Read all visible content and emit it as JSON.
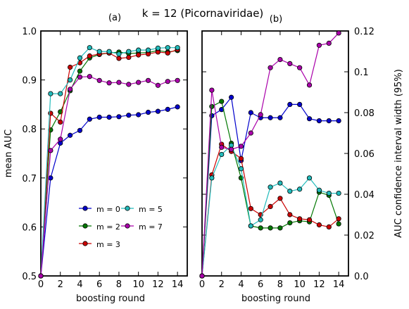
{
  "title": "k = 12 (Picornaviridae)",
  "chart_data": [
    {
      "panel_label": "(a)",
      "type": "line",
      "xlabel": "boosting round",
      "ylabel": "mean AUC",
      "xlim": [
        0,
        15
      ],
      "ylim": [
        0.5,
        1.0
      ],
      "xticks": [
        "0",
        "2",
        "4",
        "6",
        "8",
        "10",
        "12",
        "14"
      ],
      "yticks": [
        "0.5",
        "0.6",
        "0.7",
        "0.8",
        "0.9",
        "1.0"
      ],
      "x": [
        0,
        1,
        2,
        3,
        4,
        5,
        6,
        7,
        8,
        9,
        10,
        11,
        12,
        13,
        14
      ],
      "legend": {
        "placement": "lower-center"
      },
      "series": [
        {
          "name": "m = 0",
          "color": "#0000cc",
          "values": [
            0.5,
            0.7,
            0.771,
            0.787,
            0.797,
            0.82,
            0.824,
            0.824,
            0.825,
            0.828,
            0.829,
            0.834,
            0.836,
            0.84,
            0.845
          ]
        },
        {
          "name": "m = 2",
          "color": "#007700",
          "values": [
            0.5,
            0.798,
            0.835,
            0.878,
            0.918,
            0.945,
            0.952,
            0.955,
            0.957,
            0.954,
            0.955,
            0.956,
            0.96,
            0.957,
            0.96
          ]
        },
        {
          "name": "m = 3",
          "color": "#cc0000",
          "values": [
            0.5,
            0.832,
            0.814,
            0.926,
            0.935,
            0.949,
            0.953,
            0.955,
            0.944,
            0.946,
            0.951,
            0.953,
            0.957,
            0.955,
            0.962
          ]
        },
        {
          "name": "m = 5",
          "color": "#22bbbb",
          "values": [
            0.5,
            0.872,
            0.872,
            0.9,
            0.945,
            0.966,
            0.958,
            0.958,
            0.953,
            0.958,
            0.961,
            0.961,
            0.965,
            0.966,
            0.966
          ]
        },
        {
          "name": "m = 7",
          "color": "#aa00aa",
          "values": [
            0.5,
            0.756,
            0.779,
            0.881,
            0.906,
            0.907,
            0.899,
            0.894,
            0.895,
            0.891,
            0.895,
            0.899,
            0.889,
            0.897,
            0.899
          ]
        }
      ]
    },
    {
      "panel_label": "(b)",
      "type": "line",
      "xlabel": "boosting round",
      "ylabel": "AUC confidence interval width (95%)",
      "xlim": [
        0,
        15
      ],
      "ylim": [
        0.0,
        0.12
      ],
      "xticks": [
        "0",
        "2",
        "4",
        "6",
        "8",
        "10",
        "12",
        "14"
      ],
      "yticks": [
        "0.0",
        "0.02",
        "0.04",
        "0.06",
        "0.08",
        "0.1",
        "0.12"
      ],
      "x": [
        0,
        1,
        2,
        3,
        4,
        5,
        6,
        7,
        8,
        9,
        10,
        11,
        12,
        13,
        14
      ],
      "series": [
        {
          "name": "m = 0",
          "color": "#0000cc",
          "values": [
            0.0,
            0.0785,
            0.0815,
            0.0875,
            0.0565,
            0.08,
            0.0775,
            0.0775,
            0.0775,
            0.084,
            0.084,
            0.077,
            0.076,
            0.076,
            0.076
          ]
        },
        {
          "name": "m = 2",
          "color": "#007700",
          "values": [
            0.0,
            0.083,
            0.0855,
            0.065,
            0.048,
            0.0245,
            0.0235,
            0.0235,
            0.0235,
            0.026,
            0.027,
            0.0265,
            0.041,
            0.0395,
            0.0255
          ]
        },
        {
          "name": "m = 3",
          "color": "#cc0000",
          "values": [
            0.0,
            0.0495,
            0.0645,
            0.061,
            0.0575,
            0.033,
            0.03,
            0.034,
            0.038,
            0.03,
            0.028,
            0.0275,
            0.025,
            0.024,
            0.028
          ]
        },
        {
          "name": "m = 5",
          "color": "#22bbbb",
          "values": [
            0.0,
            0.048,
            0.0595,
            0.064,
            0.0525,
            0.0245,
            0.0275,
            0.0435,
            0.0455,
            0.0415,
            0.0425,
            0.048,
            0.042,
            0.0405,
            0.0405
          ]
        },
        {
          "name": "m = 7",
          "color": "#aa00aa",
          "values": [
            0.0,
            0.091,
            0.063,
            0.062,
            0.0635,
            0.07,
            0.079,
            0.102,
            0.106,
            0.104,
            0.102,
            0.0935,
            0.113,
            0.114,
            0.119
          ]
        }
      ]
    }
  ]
}
